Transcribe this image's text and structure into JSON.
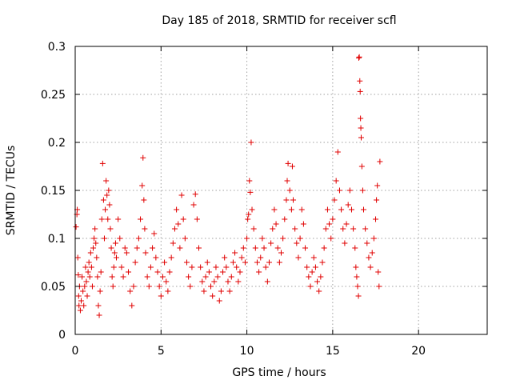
{
  "chart_data": {
    "type": "scatter",
    "title": "Day 185 of 2018, SRMTID for receiver scfl",
    "xlabel": "GPS time / hours",
    "ylabel": "SRMTID / TECUs",
    "xlim": [
      0,
      24
    ],
    "ylim": [
      0,
      0.3
    ],
    "xticks": [
      0,
      5,
      10,
      15,
      20
    ],
    "xtick_labels": [
      "0",
      "5",
      "10",
      "15",
      "20"
    ],
    "yticks": [
      0,
      0.05,
      0.1,
      0.15,
      0.2,
      0.25,
      0.3
    ],
    "ytick_labels": [
      "0",
      "0.05",
      "0.1",
      "0.15",
      "0.2",
      "0.25",
      "0.3"
    ],
    "grid": true,
    "marker": "+",
    "color": "#e00000",
    "series": [
      {
        "name": "scfl",
        "points": [
          [
            0.05,
            0.112
          ],
          [
            0.1,
            0.125
          ],
          [
            0.12,
            0.13
          ],
          [
            0.15,
            0.08
          ],
          [
            0.18,
            0.062
          ],
          [
            0.2,
            0.04
          ],
          [
            0.22,
            0.03
          ],
          [
            0.25,
            0.05
          ],
          [
            0.3,
            0.025
          ],
          [
            0.35,
            0.035
          ],
          [
            0.4,
            0.06
          ],
          [
            0.45,
            0.045
          ],
          [
            0.5,
            0.03
          ],
          [
            0.55,
            0.05
          ],
          [
            0.6,
            0.07
          ],
          [
            0.65,
            0.055
          ],
          [
            0.7,
            0.04
          ],
          [
            0.75,
            0.065
          ],
          [
            0.8,
            0.075
          ],
          [
            0.85,
            0.06
          ],
          [
            0.9,
            0.085
          ],
          [
            0.95,
            0.07
          ],
          [
            1.0,
            0.05
          ],
          [
            1.05,
            0.09
          ],
          [
            1.1,
            0.1
          ],
          [
            1.15,
            0.11
          ],
          [
            1.2,
            0.095
          ],
          [
            1.25,
            0.08
          ],
          [
            1.3,
            0.06
          ],
          [
            1.35,
            0.03
          ],
          [
            1.4,
            0.02
          ],
          [
            1.45,
            0.045
          ],
          [
            1.5,
            0.065
          ],
          [
            1.55,
            0.12
          ],
          [
            1.6,
            0.178
          ],
          [
            1.65,
            0.14
          ],
          [
            1.7,
            0.1
          ],
          [
            1.75,
            0.13
          ],
          [
            1.8,
            0.16
          ],
          [
            1.85,
            0.145
          ],
          [
            1.9,
            0.12
          ],
          [
            1.95,
            0.15
          ],
          [
            2.0,
            0.135
          ],
          [
            2.05,
            0.11
          ],
          [
            2.1,
            0.09
          ],
          [
            2.15,
            0.06
          ],
          [
            2.2,
            0.05
          ],
          [
            2.25,
            0.07
          ],
          [
            2.3,
            0.085
          ],
          [
            2.35,
            0.095
          ],
          [
            2.4,
            0.08
          ],
          [
            2.5,
            0.12
          ],
          [
            2.6,
            0.1
          ],
          [
            2.7,
            0.07
          ],
          [
            2.8,
            0.06
          ],
          [
            2.9,
            0.09
          ],
          [
            3.0,
            0.085
          ],
          [
            3.1,
            0.065
          ],
          [
            3.2,
            0.045
          ],
          [
            3.3,
            0.03
          ],
          [
            3.4,
            0.05
          ],
          [
            3.5,
            0.075
          ],
          [
            3.6,
            0.09
          ],
          [
            3.7,
            0.1
          ],
          [
            3.8,
            0.12
          ],
          [
            3.9,
            0.155
          ],
          [
            3.95,
            0.184
          ],
          [
            4.0,
            0.14
          ],
          [
            4.05,
            0.11
          ],
          [
            4.1,
            0.085
          ],
          [
            4.2,
            0.06
          ],
          [
            4.3,
            0.05
          ],
          [
            4.4,
            0.07
          ],
          [
            4.5,
            0.09
          ],
          [
            4.6,
            0.105
          ],
          [
            4.7,
            0.08
          ],
          [
            4.8,
            0.065
          ],
          [
            4.9,
            0.05
          ],
          [
            5.0,
            0.04
          ],
          [
            5.1,
            0.06
          ],
          [
            5.2,
            0.075
          ],
          [
            5.3,
            0.055
          ],
          [
            5.4,
            0.045
          ],
          [
            5.5,
            0.065
          ],
          [
            5.6,
            0.08
          ],
          [
            5.7,
            0.095
          ],
          [
            5.8,
            0.11
          ],
          [
            5.9,
            0.13
          ],
          [
            6.0,
            0.115
          ],
          [
            6.1,
            0.09
          ],
          [
            6.2,
            0.145
          ],
          [
            6.3,
            0.12
          ],
          [
            6.4,
            0.1
          ],
          [
            6.5,
            0.075
          ],
          [
            6.6,
            0.06
          ],
          [
            6.7,
            0.05
          ],
          [
            6.8,
            0.07
          ],
          [
            6.9,
            0.135
          ],
          [
            7.0,
            0.146
          ],
          [
            7.1,
            0.12
          ],
          [
            7.2,
            0.09
          ],
          [
            7.3,
            0.07
          ],
          [
            7.4,
            0.055
          ],
          [
            7.5,
            0.045
          ],
          [
            7.6,
            0.06
          ],
          [
            7.7,
            0.075
          ],
          [
            7.8,
            0.065
          ],
          [
            7.9,
            0.05
          ],
          [
            8.0,
            0.04
          ],
          [
            8.1,
            0.055
          ],
          [
            8.2,
            0.07
          ],
          [
            8.3,
            0.06
          ],
          [
            8.4,
            0.035
          ],
          [
            8.5,
            0.045
          ],
          [
            8.6,
            0.065
          ],
          [
            8.7,
            0.08
          ],
          [
            8.8,
            0.07
          ],
          [
            8.9,
            0.055
          ],
          [
            9.0,
            0.045
          ],
          [
            9.1,
            0.06
          ],
          [
            9.2,
            0.075
          ],
          [
            9.3,
            0.085
          ],
          [
            9.4,
            0.07
          ],
          [
            9.5,
            0.055
          ],
          [
            9.6,
            0.065
          ],
          [
            9.7,
            0.08
          ],
          [
            9.8,
            0.09
          ],
          [
            9.9,
            0.075
          ],
          [
            10.0,
            0.1
          ],
          [
            10.05,
            0.12
          ],
          [
            10.1,
            0.125
          ],
          [
            10.15,
            0.16
          ],
          [
            10.2,
            0.148
          ],
          [
            10.25,
            0.2
          ],
          [
            10.3,
            0.13
          ],
          [
            10.4,
            0.11
          ],
          [
            10.5,
            0.09
          ],
          [
            10.6,
            0.075
          ],
          [
            10.7,
            0.065
          ],
          [
            10.8,
            0.08
          ],
          [
            10.9,
            0.1
          ],
          [
            11.0,
            0.09
          ],
          [
            11.1,
            0.07
          ],
          [
            11.2,
            0.055
          ],
          [
            11.3,
            0.075
          ],
          [
            11.4,
            0.095
          ],
          [
            11.5,
            0.11
          ],
          [
            11.6,
            0.13
          ],
          [
            11.7,
            0.115
          ],
          [
            11.8,
            0.09
          ],
          [
            11.9,
            0.075
          ],
          [
            12.0,
            0.085
          ],
          [
            12.1,
            0.1
          ],
          [
            12.2,
            0.12
          ],
          [
            12.3,
            0.14
          ],
          [
            12.35,
            0.16
          ],
          [
            12.4,
            0.178
          ],
          [
            12.5,
            0.15
          ],
          [
            12.6,
            0.13
          ],
          [
            12.65,
            0.175
          ],
          [
            12.7,
            0.14
          ],
          [
            12.8,
            0.11
          ],
          [
            12.9,
            0.095
          ],
          [
            13.0,
            0.08
          ],
          [
            13.1,
            0.1
          ],
          [
            13.2,
            0.13
          ],
          [
            13.3,
            0.115
          ],
          [
            13.4,
            0.09
          ],
          [
            13.5,
            0.07
          ],
          [
            13.6,
            0.06
          ],
          [
            13.7,
            0.05
          ],
          [
            13.8,
            0.065
          ],
          [
            13.9,
            0.08
          ],
          [
            14.0,
            0.07
          ],
          [
            14.1,
            0.055
          ],
          [
            14.2,
            0.045
          ],
          [
            14.3,
            0.06
          ],
          [
            14.4,
            0.075
          ],
          [
            14.5,
            0.09
          ],
          [
            14.6,
            0.11
          ],
          [
            14.7,
            0.13
          ],
          [
            14.8,
            0.115
          ],
          [
            14.9,
            0.1
          ],
          [
            15.0,
            0.12
          ],
          [
            15.1,
            0.14
          ],
          [
            15.2,
            0.16
          ],
          [
            15.3,
            0.19
          ],
          [
            15.4,
            0.15
          ],
          [
            15.5,
            0.13
          ],
          [
            15.6,
            0.11
          ],
          [
            15.7,
            0.095
          ],
          [
            15.8,
            0.115
          ],
          [
            15.9,
            0.135
          ],
          [
            16.0,
            0.15
          ],
          [
            16.1,
            0.13
          ],
          [
            16.2,
            0.11
          ],
          [
            16.3,
            0.09
          ],
          [
            16.35,
            0.07
          ],
          [
            16.4,
            0.06
          ],
          [
            16.45,
            0.05
          ],
          [
            16.5,
            0.04
          ],
          [
            16.52,
            0.288
          ],
          [
            16.55,
            0.289
          ],
          [
            16.58,
            0.264
          ],
          [
            16.6,
            0.253
          ],
          [
            16.62,
            0.225
          ],
          [
            16.64,
            0.215
          ],
          [
            16.66,
            0.205
          ],
          [
            16.7,
            0.175
          ],
          [
            16.75,
            0.15
          ],
          [
            16.8,
            0.13
          ],
          [
            16.9,
            0.11
          ],
          [
            17.0,
            0.095
          ],
          [
            17.1,
            0.08
          ],
          [
            17.2,
            0.07
          ],
          [
            17.3,
            0.085
          ],
          [
            17.4,
            0.1
          ],
          [
            17.5,
            0.12
          ],
          [
            17.55,
            0.14
          ],
          [
            17.6,
            0.155
          ],
          [
            17.65,
            0.065
          ],
          [
            17.7,
            0.05
          ],
          [
            17.75,
            0.18
          ]
        ]
      }
    ]
  }
}
